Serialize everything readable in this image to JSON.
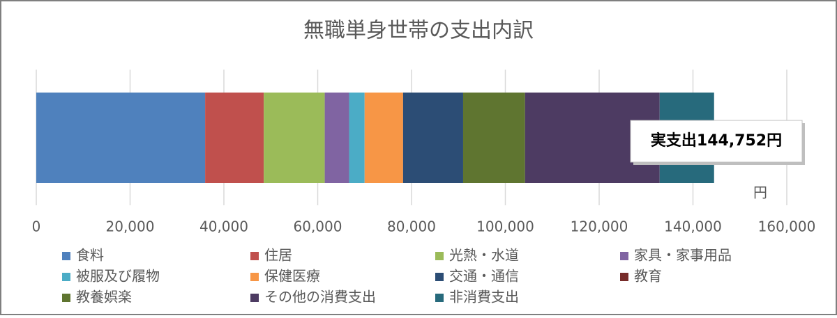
{
  "chart_data": {
    "type": "bar",
    "orientation": "horizontal",
    "stacked": true,
    "title": "無職単身世帯の支出内訳",
    "series": [
      {
        "name": "食料",
        "color": "#4f81bd",
        "values": [
          36000
        ]
      },
      {
        "name": "住居",
        "color": "#c0504d",
        "values": [
          12500
        ]
      },
      {
        "name": "光熱・水道",
        "color": "#9bbb59",
        "values": [
          13000
        ]
      },
      {
        "name": "家具・家事用品",
        "color": "#8064a2",
        "values": [
          5200
        ]
      },
      {
        "name": "被服及び履物",
        "color": "#4bacc6",
        "values": [
          3300
        ]
      },
      {
        "name": "保健医療",
        "color": "#f79646",
        "values": [
          8200
        ]
      },
      {
        "name": "交通・通信",
        "color": "#2c4d75",
        "values": [
          12800
        ]
      },
      {
        "name": "教育",
        "color": "#772c2a",
        "values": [
          0
        ]
      },
      {
        "name": "教養娯楽",
        "color": "#5f7530",
        "values": [
          13200
        ]
      },
      {
        "name": "その他の消費支出",
        "color": "#4d3b62",
        "values": [
          28700
        ]
      },
      {
        "name": "非消費支出",
        "color": "#276a7c",
        "values": [
          11600
        ]
      }
    ],
    "xlim": [
      0,
      160000
    ],
    "xticks": [
      0,
      {
        "value": 20000,
        "label": "20,000"
      },
      {
        "value": 40000,
        "label": "40,000"
      },
      {
        "value": 60000,
        "label": "60,000"
      },
      {
        "value": 80000,
        "label": "80,000"
      },
      {
        "value": 100000,
        "label": "100,000"
      },
      {
        "value": 120000,
        "label": "120,000"
      },
      {
        "value": 140000,
        "label": "140,000"
      },
      {
        "value": 160000,
        "label": "160,000"
      }
    ],
    "x_unit": "円",
    "annotation": "実支出144,752円",
    "grid": true,
    "legend": "bottom"
  }
}
